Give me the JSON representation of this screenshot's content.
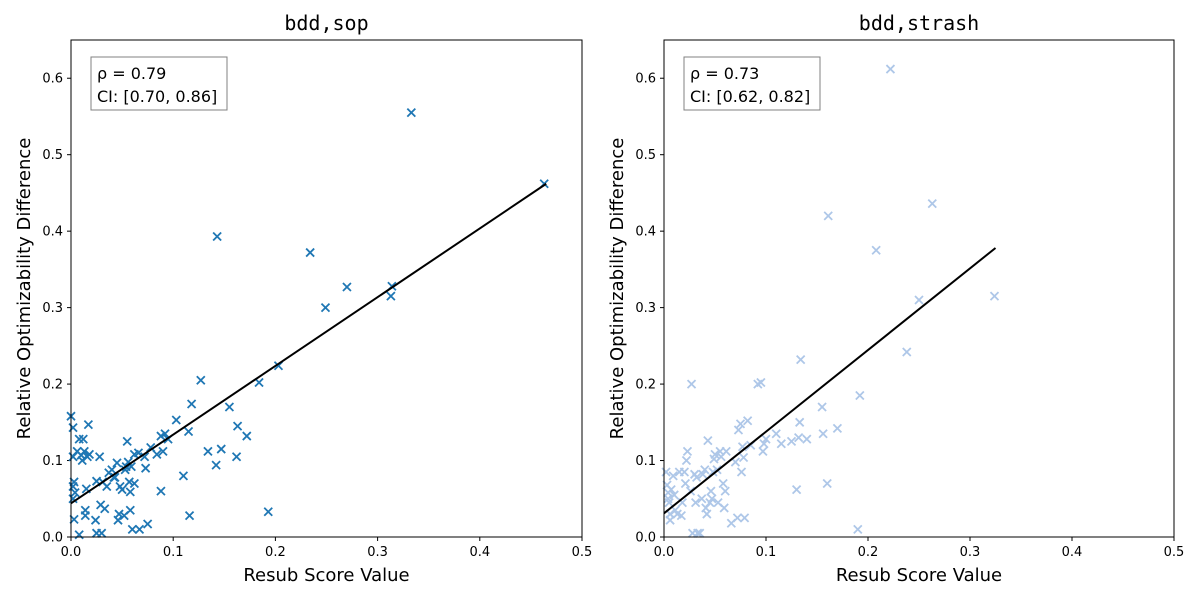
{
  "chart_data": [
    {
      "type": "scatter",
      "title": "bdd,sop",
      "xlabel": "Resub Score Value",
      "ylabel": "Relative Optimizability Difference",
      "xlim": [
        0,
        0.5
      ],
      "ylim": [
        0,
        0.65
      ],
      "xticks": [
        "0.0",
        "0.1",
        "0.2",
        "0.3",
        "0.4",
        "0.5"
      ],
      "yticks": [
        "0.0",
        "0.1",
        "0.2",
        "0.3",
        "0.4",
        "0.5",
        "0.6"
      ],
      "grid": false,
      "marker": "x",
      "color": "#1f77b4",
      "annotation": [
        "ρ = 0.79",
        "CI: [0.70, 0.86]"
      ],
      "fit": {
        "x": [
          0.0,
          0.465
        ],
        "y": [
          0.044,
          0.462
        ],
        "color": "#000000"
      },
      "points": [
        [
          0.0,
          0.158
        ],
        [
          0.002,
          0.143
        ],
        [
          0.002,
          0.105
        ],
        [
          0.003,
          0.072
        ],
        [
          0.002,
          0.066
        ],
        [
          0.002,
          0.05
        ],
        [
          0.004,
          0.058
        ],
        [
          0.003,
          0.023
        ],
        [
          0.006,
          0.112
        ],
        [
          0.008,
          0.128
        ],
        [
          0.01,
          0.107
        ],
        [
          0.012,
          0.128
        ],
        [
          0.011,
          0.1
        ],
        [
          0.013,
          0.112
        ],
        [
          0.016,
          0.105
        ],
        [
          0.017,
          0.147
        ],
        [
          0.018,
          0.108
        ],
        [
          0.015,
          0.063
        ],
        [
          0.014,
          0.035
        ],
        [
          0.014,
          0.028
        ],
        [
          0.008,
          0.003
        ],
        [
          0.024,
          0.022
        ],
        [
          0.025,
          0.005
        ],
        [
          0.025,
          0.073
        ],
        [
          0.028,
          0.105
        ],
        [
          0.029,
          0.042
        ],
        [
          0.03,
          0.005
        ],
        [
          0.031,
          0.072
        ],
        [
          0.033,
          0.037
        ],
        [
          0.035,
          0.066
        ],
        [
          0.037,
          0.084
        ],
        [
          0.04,
          0.088
        ],
        [
          0.042,
          0.078
        ],
        [
          0.043,
          0.078
        ],
        [
          0.045,
          0.097
        ],
        [
          0.046,
          0.022
        ],
        [
          0.047,
          0.03
        ],
        [
          0.048,
          0.066
        ],
        [
          0.05,
          0.062
        ],
        [
          0.052,
          0.028
        ],
        [
          0.053,
          0.088
        ],
        [
          0.054,
          0.092
        ],
        [
          0.055,
          0.125
        ],
        [
          0.056,
          0.098
        ],
        [
          0.057,
          0.072
        ],
        [
          0.058,
          0.059
        ],
        [
          0.058,
          0.035
        ],
        [
          0.059,
          0.092
        ],
        [
          0.06,
          0.01
        ],
        [
          0.062,
          0.07
        ],
        [
          0.062,
          0.108
        ],
        [
          0.066,
          0.11
        ],
        [
          0.067,
          0.01
        ],
        [
          0.072,
          0.105
        ],
        [
          0.073,
          0.09
        ],
        [
          0.075,
          0.017
        ],
        [
          0.078,
          0.117
        ],
        [
          0.084,
          0.108
        ],
        [
          0.088,
          0.132
        ],
        [
          0.088,
          0.06
        ],
        [
          0.09,
          0.112
        ],
        [
          0.092,
          0.135
        ],
        [
          0.095,
          0.128
        ],
        [
          0.103,
          0.153
        ],
        [
          0.11,
          0.08
        ],
        [
          0.115,
          0.138
        ],
        [
          0.116,
          0.028
        ],
        [
          0.118,
          0.174
        ],
        [
          0.127,
          0.205
        ],
        [
          0.134,
          0.112
        ],
        [
          0.142,
          0.094
        ],
        [
          0.143,
          0.393
        ],
        [
          0.147,
          0.115
        ],
        [
          0.155,
          0.17
        ],
        [
          0.162,
          0.105
        ],
        [
          0.163,
          0.145
        ],
        [
          0.172,
          0.132
        ],
        [
          0.184,
          0.202
        ],
        [
          0.193,
          0.033
        ],
        [
          0.203,
          0.224
        ],
        [
          0.234,
          0.372
        ],
        [
          0.249,
          0.3
        ],
        [
          0.27,
          0.327
        ],
        [
          0.313,
          0.315
        ],
        [
          0.314,
          0.328
        ],
        [
          0.333,
          0.555
        ],
        [
          0.463,
          0.462
        ]
      ]
    },
    {
      "type": "scatter",
      "title": "bdd,strash",
      "xlabel": "Resub Score Value",
      "ylabel": "Relative Optimizability Difference",
      "xlim": [
        0,
        0.5
      ],
      "ylim": [
        0,
        0.65
      ],
      "xticks": [
        "0.0",
        "0.1",
        "0.2",
        "0.3",
        "0.4",
        "0.5"
      ],
      "yticks": [
        "0.0",
        "0.1",
        "0.2",
        "0.3",
        "0.4",
        "0.5",
        "0.6"
      ],
      "grid": false,
      "marker": "x",
      "color": "#aec7e8",
      "annotation": [
        "ρ = 0.73",
        "CI: [0.62, 0.82]"
      ],
      "fit": {
        "x": [
          0.0,
          0.325
        ],
        "y": [
          0.031,
          0.378
        ],
        "color": "#000000"
      },
      "points": [
        [
          0.002,
          0.085
        ],
        [
          0.003,
          0.068
        ],
        [
          0.004,
          0.058
        ],
        [
          0.004,
          0.05
        ],
        [
          0.005,
          0.045
        ],
        [
          0.006,
          0.03
        ],
        [
          0.006,
          0.022
        ],
        [
          0.007,
          0.062
        ],
        [
          0.009,
          0.08
        ],
        [
          0.01,
          0.055
        ],
        [
          0.011,
          0.035
        ],
        [
          0.013,
          0.03
        ],
        [
          0.015,
          0.085
        ],
        [
          0.017,
          0.028
        ],
        [
          0.018,
          0.045
        ],
        [
          0.02,
          0.085
        ],
        [
          0.021,
          0.07
        ],
        [
          0.022,
          0.1
        ],
        [
          0.023,
          0.112
        ],
        [
          0.026,
          0.06
        ],
        [
          0.027,
          0.2
        ],
        [
          0.028,
          0.005
        ],
        [
          0.03,
          0.082
        ],
        [
          0.031,
          0.045
        ],
        [
          0.032,
          0.078
        ],
        [
          0.033,
          0.005
        ],
        [
          0.035,
          0.005
        ],
        [
          0.037,
          0.05
        ],
        [
          0.038,
          0.082
        ],
        [
          0.04,
          0.088
        ],
        [
          0.041,
          0.038
        ],
        [
          0.042,
          0.03
        ],
        [
          0.043,
          0.126
        ],
        [
          0.045,
          0.045
        ],
        [
          0.046,
          0.06
        ],
        [
          0.047,
          0.05
        ],
        [
          0.048,
          0.085
        ],
        [
          0.049,
          0.102
        ],
        [
          0.05,
          0.108
        ],
        [
          0.052,
          0.088
        ],
        [
          0.053,
          0.045
        ],
        [
          0.055,
          0.112
        ],
        [
          0.056,
          0.105
        ],
        [
          0.058,
          0.07
        ],
        [
          0.059,
          0.038
        ],
        [
          0.06,
          0.06
        ],
        [
          0.061,
          0.112
        ],
        [
          0.066,
          0.018
        ],
        [
          0.07,
          0.098
        ],
        [
          0.072,
          0.025
        ],
        [
          0.073,
          0.14
        ],
        [
          0.075,
          0.148
        ],
        [
          0.076,
          0.085
        ],
        [
          0.077,
          0.118
        ],
        [
          0.078,
          0.104
        ],
        [
          0.079,
          0.025
        ],
        [
          0.082,
          0.152
        ],
        [
          0.085,
          0.12
        ],
        [
          0.092,
          0.2
        ],
        [
          0.095,
          0.202
        ],
        [
          0.097,
          0.112
        ],
        [
          0.098,
          0.122
        ],
        [
          0.1,
          0.128
        ],
        [
          0.11,
          0.135
        ],
        [
          0.115,
          0.122
        ],
        [
          0.125,
          0.125
        ],
        [
          0.13,
          0.062
        ],
        [
          0.132,
          0.13
        ],
        [
          0.133,
          0.15
        ],
        [
          0.134,
          0.232
        ],
        [
          0.14,
          0.128
        ],
        [
          0.155,
          0.17
        ],
        [
          0.156,
          0.135
        ],
        [
          0.16,
          0.07
        ],
        [
          0.161,
          0.42
        ],
        [
          0.17,
          0.142
        ],
        [
          0.19,
          0.01
        ],
        [
          0.192,
          0.185
        ],
        [
          0.208,
          0.375
        ],
        [
          0.222,
          0.612
        ],
        [
          0.238,
          0.242
        ],
        [
          0.25,
          0.31
        ],
        [
          0.263,
          0.436
        ],
        [
          0.324,
          0.315
        ]
      ]
    }
  ]
}
